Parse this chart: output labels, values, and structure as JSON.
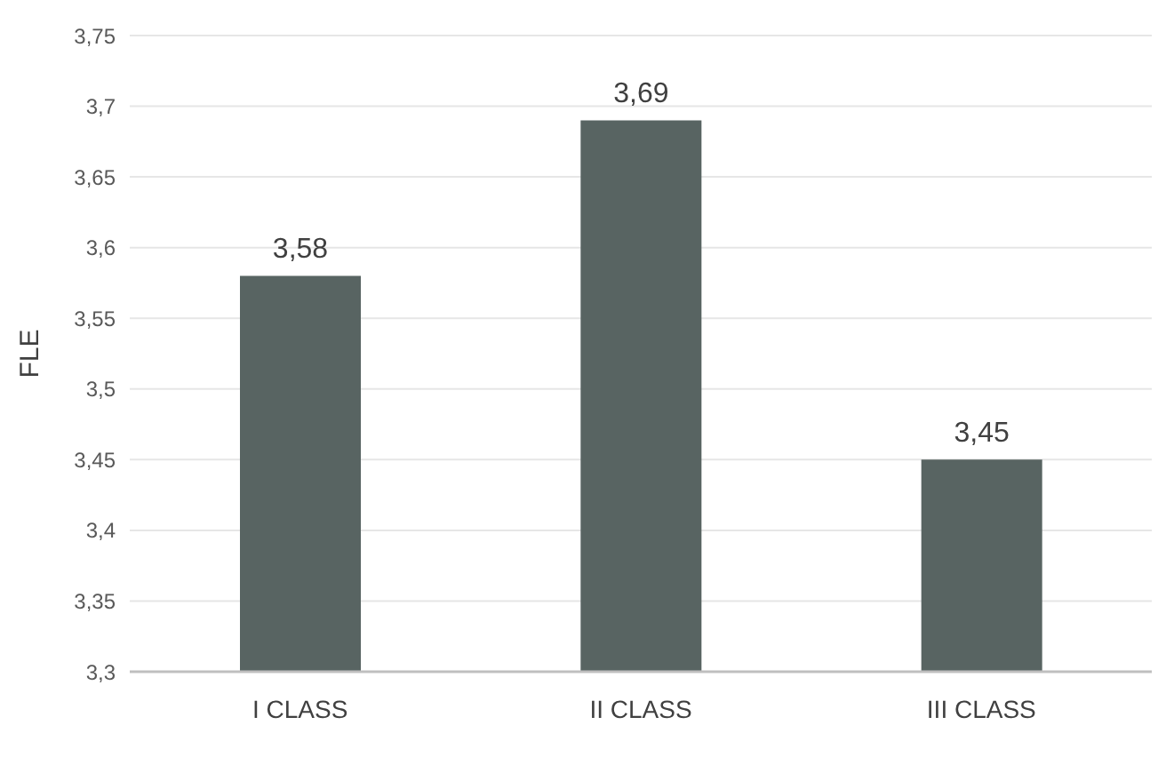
{
  "chart_data": {
    "type": "bar",
    "ylabel": "FLE",
    "categories": [
      "I CLASS",
      "II CLASS",
      "III CLASS"
    ],
    "values": [
      3.58,
      3.69,
      3.45
    ],
    "color": "#586462",
    "value_labels": [
      "3,58",
      "3,69",
      "3,45"
    ],
    "ylim": [
      3.3,
      3.75
    ],
    "yticks": [
      {
        "value": 3.3,
        "label": "3,3"
      },
      {
        "value": 3.35,
        "label": "3,35"
      },
      {
        "value": 3.4,
        "label": "3,4"
      },
      {
        "value": 3.45,
        "label": "3,45"
      },
      {
        "value": 3.5,
        "label": "3,5"
      },
      {
        "value": 3.55,
        "label": "3,55"
      },
      {
        "value": 3.6,
        "label": "3,6"
      },
      {
        "value": 3.65,
        "label": "3,65"
      },
      {
        "value": 3.7,
        "label": "3,7"
      },
      {
        "value": 3.75,
        "label": "3,75"
      }
    ],
    "grid": "y",
    "legend": false
  }
}
